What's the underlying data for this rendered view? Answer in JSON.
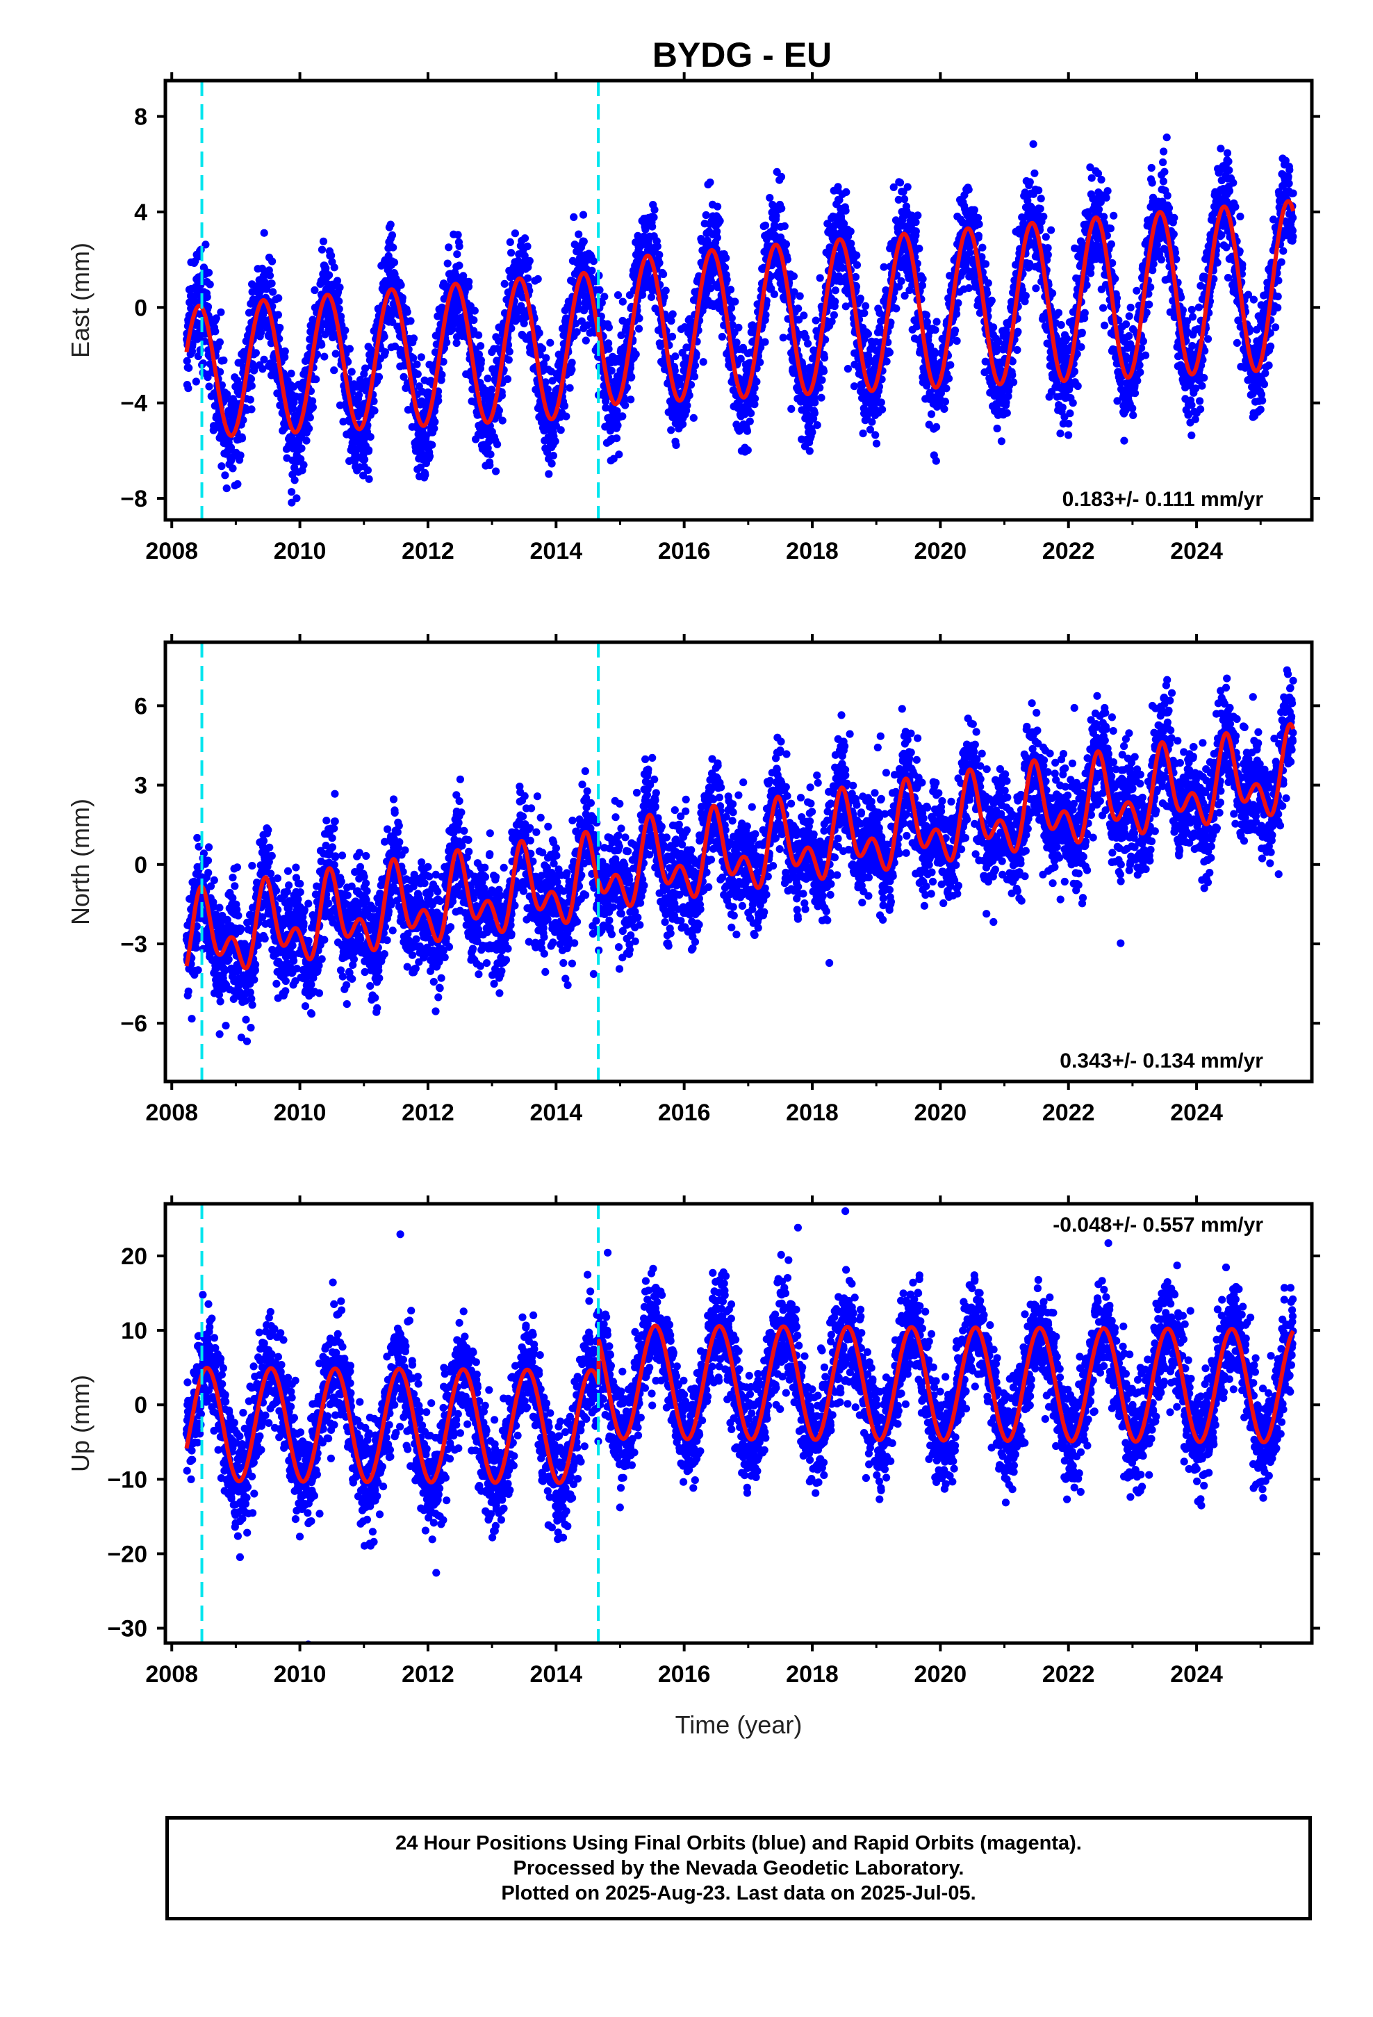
{
  "title": "BYDG - EU",
  "footer": {
    "line1": "24 Hour Positions Using Final Orbits (blue) and Rapid Orbits (magenta).",
    "line2": "Processed by the Nevada Geodetic Laboratory.",
    "line3": "Plotted on 2025-Aug-23. Last data on 2025-Jul-05."
  },
  "colors": {
    "points": "#0000ff",
    "model": "#ee1111",
    "steps": "#00e5ee"
  },
  "chart_data": [
    {
      "type": "scatter",
      "title": "BYDG - EU",
      "xlabel": "",
      "ylabel": "East (mm)",
      "xlim": [
        2007.9,
        2025.8
      ],
      "ylim": [
        -8.9,
        9.5
      ],
      "yticks": [
        -8,
        -4,
        0,
        4,
        8
      ],
      "yticklabels": [
        "−8",
        "−4",
        "0",
        "4",
        "8"
      ],
      "xticks": [
        2008,
        2010,
        2012,
        2014,
        2016,
        2018,
        2020,
        2022,
        2024
      ],
      "xticklabels": [
        "2008",
        "2010",
        "2012",
        "2014",
        "2016",
        "2018",
        "2020",
        "2022",
        "2024"
      ],
      "grid": false,
      "step_lines": [
        2008.47,
        2014.66
      ],
      "data_start": 2008.23,
      "data_end": 2025.51,
      "rate_label": "0.183+/- 0.111 mm/yr",
      "rate_position": "bottom-right",
      "model": {
        "offset": -1.3,
        "trend_mm_per_yr": 0.183,
        "trend_ref": 2016.0,
        "annual_amp": 3.1,
        "annual_peak": 0.43,
        "annual_amp_slope": 0.045,
        "semiannual_amp": 0.0,
        "semiannual_peak": 0.0,
        "jumps": [
          {
            "at": 2014.66,
            "size": 0.5
          }
        ],
        "points_scatter": 1.1
      }
    },
    {
      "type": "scatter",
      "xlabel": "",
      "ylabel": "North (mm)",
      "xlim": [
        2007.9,
        2025.8
      ],
      "ylim": [
        -8.2,
        8.4
      ],
      "yticks": [
        -6,
        -3,
        0,
        3,
        6
      ],
      "yticklabels": [
        "−6",
        "−3",
        "0",
        "3",
        "6"
      ],
      "xticks": [
        2008,
        2010,
        2012,
        2014,
        2016,
        2018,
        2020,
        2022,
        2024
      ],
      "xticklabels": [
        "2008",
        "2010",
        "2012",
        "2014",
        "2016",
        "2018",
        "2020",
        "2022",
        "2024"
      ],
      "grid": false,
      "step_lines": [
        2008.47,
        2014.66
      ],
      "data_start": 2008.23,
      "data_end": 2025.51,
      "rate_label": "0.343+/- 0.134 mm/yr",
      "rate_position": "bottom-right",
      "model": {
        "offset": -0.2,
        "trend_mm_per_yr": 0.343,
        "trend_ref": 2016.0,
        "annual_amp": 1.1,
        "annual_peak": 0.5,
        "annual_amp_slope": 0.0,
        "semiannual_amp": 0.9,
        "semiannual_peak": 0.45,
        "jumps": [
          {
            "at": 2014.66,
            "size": 0.3
          }
        ],
        "points_scatter": 1.0
      }
    },
    {
      "type": "scatter",
      "xlabel": "Time (year)",
      "ylabel": "Up (mm)",
      "xlim": [
        2007.9,
        2025.8
      ],
      "ylim": [
        -32,
        27
      ],
      "yticks": [
        -30,
        -20,
        -10,
        0,
        10,
        20
      ],
      "yticklabels": [
        "−30",
        "−20",
        "−10",
        "0",
        "10",
        "20"
      ],
      "xticks": [
        2008,
        2010,
        2012,
        2014,
        2016,
        2018,
        2020,
        2022,
        2024
      ],
      "xticklabels": [
        "2008",
        "2010",
        "2012",
        "2014",
        "2016",
        "2018",
        "2020",
        "2022",
        "2024"
      ],
      "grid": false,
      "step_lines": [
        2008.47,
        2014.66
      ],
      "data_start": 2008.23,
      "data_end": 2025.51,
      "rate_label": "-0.048+/- 0.557 mm/yr",
      "rate_position": "top-right",
      "model": {
        "offset": -3.0,
        "trend_mm_per_yr": -0.048,
        "trend_ref": 2016.0,
        "annual_amp": 7.6,
        "annual_peak": 0.55,
        "annual_amp_slope": 0.0,
        "semiannual_amp": 0.0,
        "semiannual_peak": 0.0,
        "jumps": [
          {
            "at": 2014.66,
            "size": 6.0
          }
        ],
        "points_scatter": 3.5
      }
    }
  ]
}
